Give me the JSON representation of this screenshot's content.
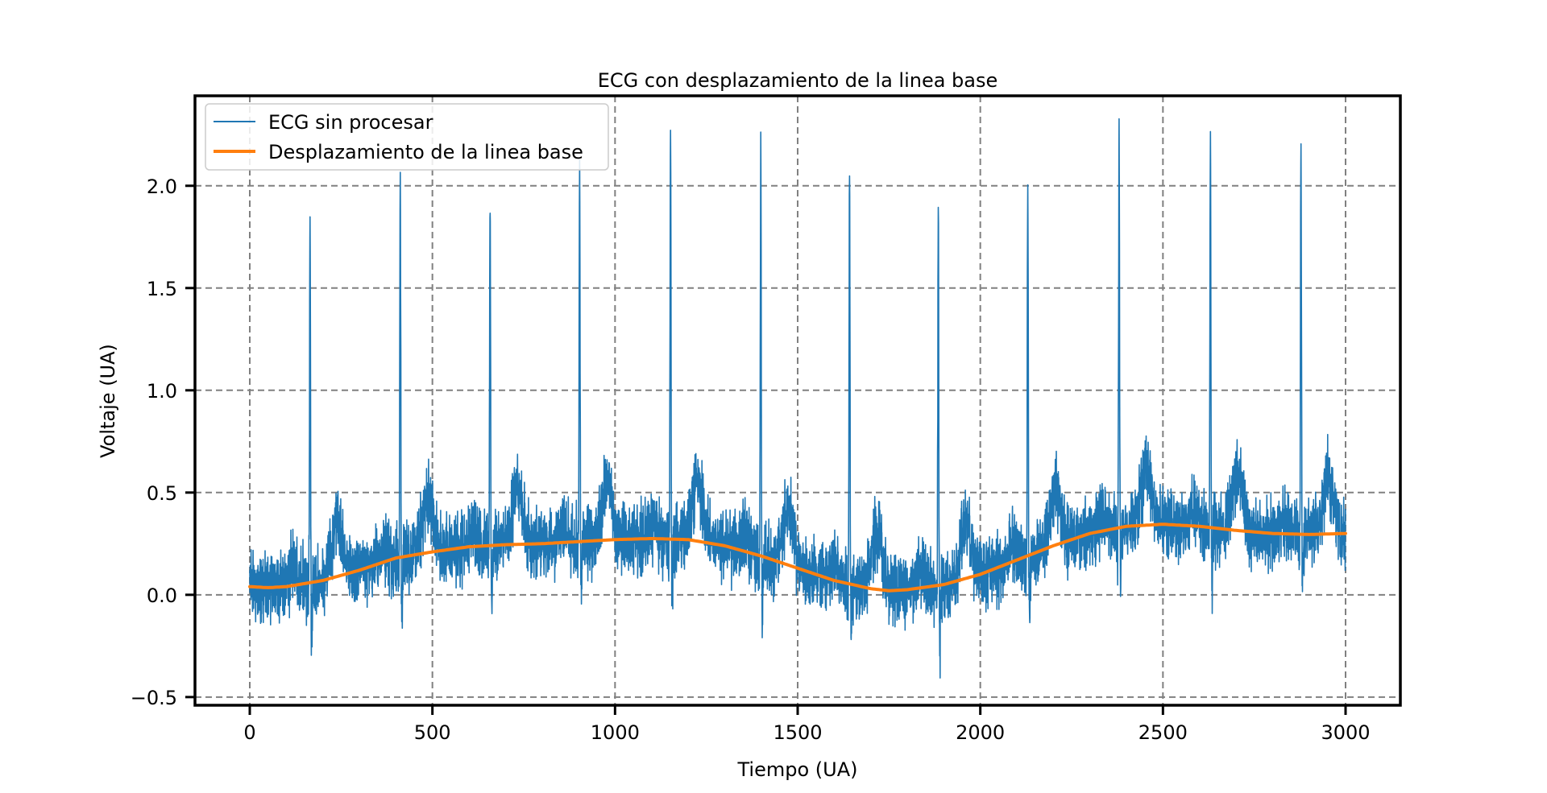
{
  "chart_data": {
    "type": "line",
    "title": "ECG con desplazamiento de la linea base",
    "xlabel": "Tiempo (UA)",
    "ylabel": "Voltaje (UA)",
    "xlim": [
      -150,
      3150
    ],
    "ylim": [
      -0.54,
      2.44
    ],
    "x_ticks": [
      0,
      500,
      1000,
      1500,
      2000,
      2500,
      3000
    ],
    "x_tick_labels": [
      "0",
      "500",
      "1000",
      "1500",
      "2000",
      "2500",
      "3000"
    ],
    "y_ticks": [
      -0.5,
      0.0,
      0.5,
      1.0,
      1.5,
      2.0
    ],
    "y_tick_labels": [
      "−0.5",
      "0.0",
      "0.5",
      "1.0",
      "1.5",
      "2.0"
    ],
    "grid": true,
    "legend_position": "top-left",
    "series": [
      {
        "name": "ECG sin procesar",
        "color": "#1f77b4",
        "description_of_shape": "noisy ECG trace riding on the baseline",
        "r_peaks": [
          {
            "x": 165,
            "y": 1.84
          },
          {
            "x": 412,
            "y": 2.06
          },
          {
            "x": 658,
            "y": 1.99
          },
          {
            "x": 903,
            "y": 2.13
          },
          {
            "x": 1152,
            "y": 2.26
          },
          {
            "x": 1399,
            "y": 2.17
          },
          {
            "x": 1642,
            "y": 2.14
          },
          {
            "x": 1885,
            "y": 1.96
          },
          {
            "x": 2130,
            "y": 2.11
          },
          {
            "x": 2380,
            "y": 2.29
          },
          {
            "x": 2630,
            "y": 2.26
          },
          {
            "x": 2878,
            "y": 2.31
          }
        ],
        "x_range": [
          0,
          3000
        ],
        "typical_min": -0.4,
        "noise_band_width": 0.35
      },
      {
        "name": "Desplazamiento de la linea base",
        "color": "#ff7f0e",
        "x": [
          0,
          50,
          100,
          200,
          300,
          400,
          500,
          600,
          700,
          800,
          900,
          1000,
          1100,
          1200,
          1300,
          1400,
          1500,
          1600,
          1700,
          1750,
          1800,
          1900,
          2000,
          2100,
          2200,
          2300,
          2400,
          2500,
          2600,
          2700,
          2800,
          2900,
          3000
        ],
        "y": [
          0.04,
          0.035,
          0.04,
          0.07,
          0.12,
          0.18,
          0.21,
          0.235,
          0.245,
          0.25,
          0.26,
          0.27,
          0.275,
          0.27,
          0.24,
          0.19,
          0.13,
          0.07,
          0.03,
          0.02,
          0.025,
          0.05,
          0.1,
          0.17,
          0.24,
          0.3,
          0.335,
          0.345,
          0.335,
          0.315,
          0.3,
          0.295,
          0.3
        ]
      }
    ]
  }
}
